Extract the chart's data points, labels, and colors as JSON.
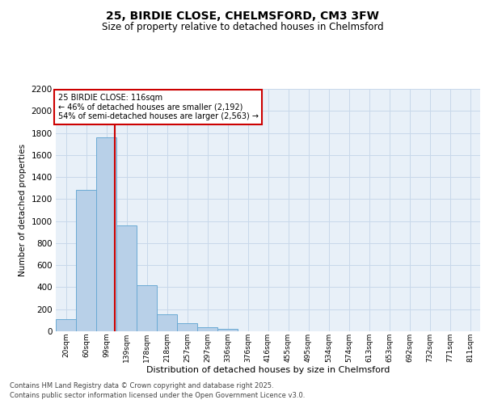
{
  "title1": "25, BIRDIE CLOSE, CHELMSFORD, CM3 3FW",
  "title2": "Size of property relative to detached houses in Chelmsford",
  "xlabel": "Distribution of detached houses by size in Chelmsford",
  "ylabel": "Number of detached properties",
  "categories": [
    "20sqm",
    "60sqm",
    "99sqm",
    "139sqm",
    "178sqm",
    "218sqm",
    "257sqm",
    "297sqm",
    "336sqm",
    "376sqm",
    "416sqm",
    "455sqm",
    "495sqm",
    "534sqm",
    "574sqm",
    "613sqm",
    "653sqm",
    "692sqm",
    "732sqm",
    "771sqm",
    "811sqm"
  ],
  "values": [
    110,
    1280,
    1760,
    960,
    420,
    155,
    75,
    40,
    25,
    0,
    0,
    0,
    0,
    0,
    0,
    0,
    0,
    0,
    0,
    0,
    0
  ],
  "bar_color": "#b8d0e8",
  "bar_edge_color": "#6aaad4",
  "grid_color": "#c8d8ea",
  "bg_color": "#e8f0f8",
  "vline_color": "#cc0000",
  "annotation_line1": "25 BIRDIE CLOSE: 116sqm",
  "annotation_line2": "← 46% of detached houses are smaller (2,192)",
  "annotation_line3": "54% of semi-detached houses are larger (2,563) →",
  "annotation_box_color": "#cc0000",
  "ylim": [
    0,
    2200
  ],
  "yticks": [
    0,
    200,
    400,
    600,
    800,
    1000,
    1200,
    1400,
    1600,
    1800,
    2000,
    2200
  ],
  "footer1": "Contains HM Land Registry data © Crown copyright and database right 2025.",
  "footer2": "Contains public sector information licensed under the Open Government Licence v3.0."
}
